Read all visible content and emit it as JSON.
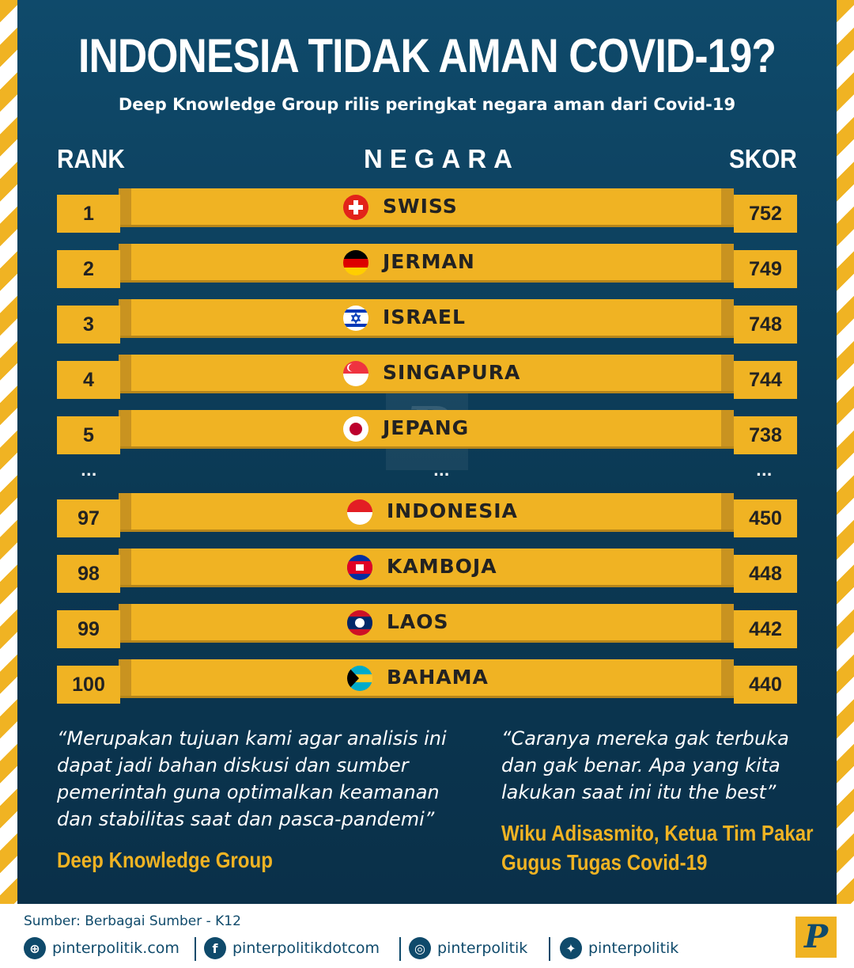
{
  "title": "INDONESIA TIDAK AMAN COVID-19?",
  "subtitle": "Deep Knowledge Group rilis peringkat negara aman dari Covid-19",
  "headers": {
    "rank": "RANK",
    "negara": "NEGARA",
    "skor": "SKOR"
  },
  "rows": [
    {
      "rank": "1",
      "country": "SWISS",
      "score": "752",
      "flag": "swiss-flag"
    },
    {
      "rank": "2",
      "country": "JERMAN",
      "score": "749",
      "flag": "germany-flag"
    },
    {
      "rank": "3",
      "country": "ISRAEL",
      "score": "748",
      "flag": "israel-flag"
    },
    {
      "rank": "4",
      "country": "SINGAPURA",
      "score": "744",
      "flag": "singapore-flag"
    },
    {
      "rank": "5",
      "country": "JEPANG",
      "score": "738",
      "flag": "japan-flag"
    },
    {
      "rank": "97",
      "country": "INDONESIA",
      "score": "450",
      "flag": "indonesia-flag"
    },
    {
      "rank": "98",
      "country": "KAMBOJA",
      "score": "448",
      "flag": "cambodia-flag"
    },
    {
      "rank": "99",
      "country": "LAOS",
      "score": "442",
      "flag": "laos-flag"
    },
    {
      "rank": "100",
      "country": "BAHAMA",
      "score": "440",
      "flag": "bahamas-flag"
    }
  ],
  "ellipsis": "...",
  "quotes": [
    {
      "text": "“Merupakan tujuan kami agar analisis ini dapat jadi bahan diskusi dan sumber pemerintah guna optimalkan keamanan dan stabilitas saat dan pasca-pandemi”",
      "source": "Deep Knowledge Group"
    },
    {
      "text": "“Caranya mereka gak terbuka dan gak benar. Apa yang kita lakukan saat ini itu the best”",
      "source": "Wiku Adisasmito, Ketua Tim Pakar Gugus Tugas Covid-19"
    }
  ],
  "footer": {
    "source": "Sumber: Berbagai Sumber - K12",
    "website": "pinterpolitik.com",
    "facebook": "pinterpolitikdotcom",
    "instagram": "pinterpolitik",
    "twitter": "pinterpolitik"
  },
  "colors": {
    "navy": "#0b3954",
    "gold": "#f0b323",
    "white": "#ffffff"
  }
}
